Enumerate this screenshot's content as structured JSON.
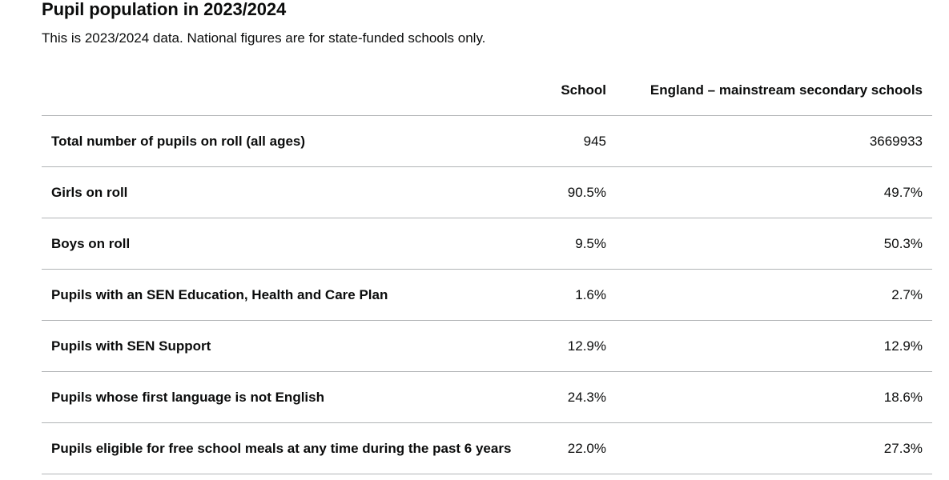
{
  "section": {
    "title": "Pupil population in 2023/2024",
    "subtitle": "This is 2023/2024 data. National figures are for state-funded schools only."
  },
  "table": {
    "headers": {
      "label": "",
      "school": "School",
      "england": "England – mainstream secondary schools"
    },
    "rows": [
      {
        "label": "Total number of pupils on roll (all ages)",
        "school": "945",
        "england": "3669933"
      },
      {
        "label": "Girls on roll",
        "school": "90.5%",
        "england": "49.7%"
      },
      {
        "label": "Boys on roll",
        "school": "9.5%",
        "england": "50.3%"
      },
      {
        "label": "Pupils with an SEN Education, Health and Care Plan",
        "school": "1.6%",
        "england": "2.7%"
      },
      {
        "label": "Pupils with SEN Support",
        "school": "12.9%",
        "england": "12.9%"
      },
      {
        "label": "Pupils whose first language is not English",
        "school": "24.3%",
        "england": "18.6%"
      },
      {
        "label": "Pupils eligible for free school meals at any time during the past 6 years",
        "school": "22.0%",
        "england": "27.3%"
      }
    ]
  }
}
